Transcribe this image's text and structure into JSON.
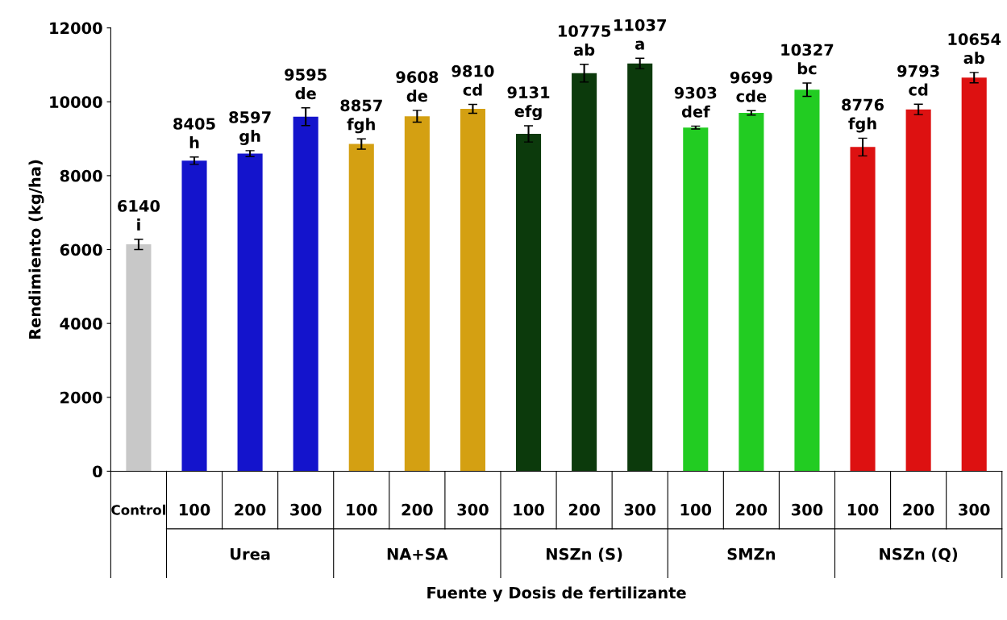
{
  "chart_data": {
    "type": "bar",
    "xlabel": "Fuente y Dosis de fertilizante",
    "ylabel": "Rendimiento (kg/ha)",
    "categories": [
      "Control",
      "100",
      "200",
      "300",
      "100",
      "200",
      "300",
      "100",
      "200",
      "300",
      "100",
      "200",
      "300",
      "100",
      "200",
      "300"
    ],
    "annotations": [
      "Urea",
      "NA+SA",
      "NSZn (S)",
      "SMZn",
      "NSZn (Q)"
    ],
    "values": [
      6140,
      8405,
      8597,
      9595,
      8857,
      9608,
      9810,
      9131,
      10775,
      11037,
      9303,
      9699,
      10327,
      8776,
      9793,
      10654
    ],
    "errors": [
      140,
      100,
      80,
      240,
      140,
      160,
      120,
      220,
      240,
      140,
      40,
      60,
      180,
      240,
      140,
      140
    ],
    "value_labels": [
      "6140\ni",
      "8405\nh",
      "8597\ngh",
      "9595\nde",
      "8857\nfgh",
      "9608\nde",
      "9810\ncd",
      "9131\nefg",
      "10775\nab",
      "11037\na",
      "9303\ndef",
      "9699\ncde",
      "10327\nbc",
      "8776\nfgh",
      "9793\ncd",
      "10654\nab"
    ],
    "colors": [
      "#c8c8c8",
      "#1414cc",
      "#1414cc",
      "#1414cc",
      "#d4a012",
      "#d4a012",
      "#d4a012",
      "#0c3a0c",
      "#0c3a0c",
      "#0c3a0c",
      "#22cc22",
      "#22cc22",
      "#22cc22",
      "#dd1111",
      "#dd1111",
      "#dd1111"
    ],
    "ylim": [
      0,
      12000
    ],
    "yticks": [
      0,
      2000,
      4000,
      6000,
      8000,
      10000,
      12000
    ],
    "grid": false,
    "legend": false
  }
}
